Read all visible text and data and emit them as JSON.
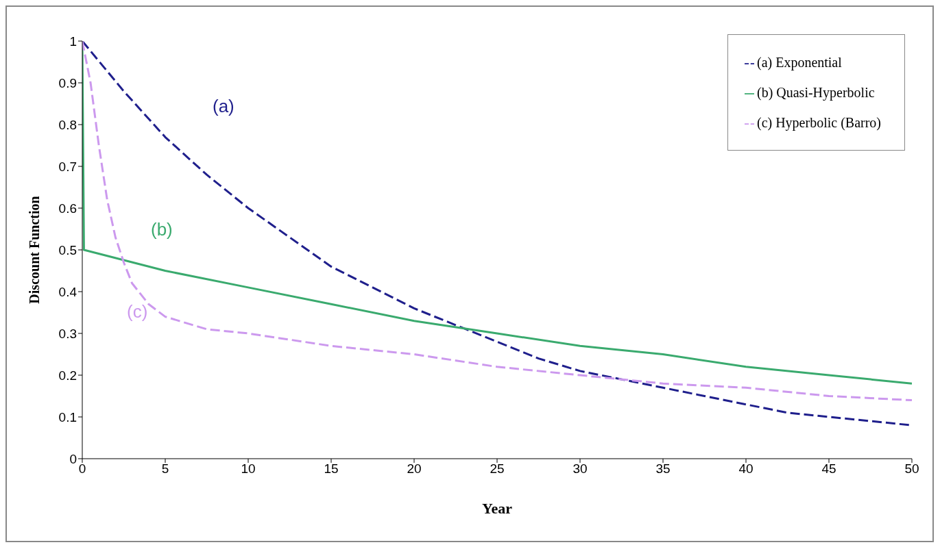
{
  "chart_data": {
    "type": "line",
    "xlabel": "Year",
    "ylabel": "Discount Function",
    "xlim": [
      0,
      50
    ],
    "xticks": [
      0,
      5,
      10,
      15,
      20,
      25,
      30,
      35,
      40,
      45,
      50
    ],
    "ylim": [
      0,
      1
    ],
    "yticks": [
      0,
      0.1,
      0.2,
      0.3,
      0.4,
      0.5,
      0.6,
      0.7,
      0.8,
      0.9,
      1
    ],
    "legend": "top right",
    "grid": false,
    "marker": "none",
    "series": [
      {
        "name": "(a) Exponential",
        "color": "#1f1f8c",
        "line_style": "dashed",
        "x": [
          0,
          2.5,
          5,
          7.5,
          10,
          12.5,
          15,
          17.5,
          20,
          22.5,
          25,
          27.5,
          30,
          32.5,
          35,
          37.5,
          40,
          42.5,
          45,
          47.5,
          50
        ],
        "values": [
          1,
          0.88,
          0.77,
          0.68,
          0.6,
          0.53,
          0.46,
          0.41,
          0.36,
          0.32,
          0.28,
          0.24,
          0.21,
          0.19,
          0.17,
          0.15,
          0.13,
          0.11,
          0.1,
          0.09,
          0.08
        ]
      },
      {
        "name": "(b) Quasi-Hyperbolic",
        "color": "#3aaa6e",
        "line_style": "solid",
        "x": [
          0,
          0.1,
          5,
          10,
          15,
          20,
          25,
          30,
          35,
          40,
          45,
          50
        ],
        "values": [
          1,
          0.5,
          0.45,
          0.41,
          0.37,
          0.33,
          0.3,
          0.27,
          0.25,
          0.22,
          0.2,
          0.18
        ]
      },
      {
        "name": "(c) Hyperbolic (Barro)",
        "color": "#cc99ee",
        "line_style": "dashed",
        "x": [
          0,
          0.5,
          1,
          1.5,
          2,
          2.5,
          3,
          4,
          5,
          7.5,
          10,
          15,
          20,
          25,
          30,
          35,
          40,
          45,
          50
        ],
        "values": [
          1,
          0.9,
          0.75,
          0.62,
          0.53,
          0.47,
          0.42,
          0.37,
          0.34,
          0.31,
          0.3,
          0.27,
          0.25,
          0.22,
          0.2,
          0.18,
          0.17,
          0.15,
          0.14
        ]
      }
    ],
    "annotations": [
      "(a)",
      "(b)",
      "(c)"
    ]
  }
}
